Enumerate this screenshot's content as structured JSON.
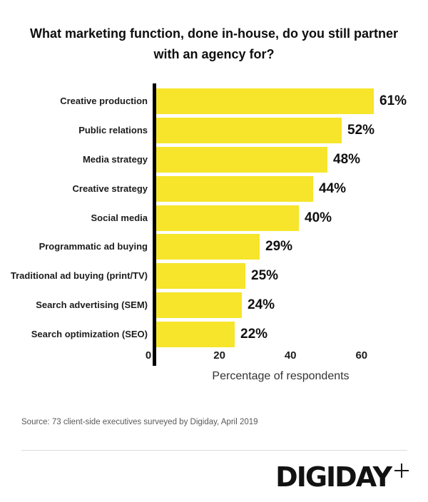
{
  "title": "What marketing function, done in-house, do you still partner with an agency for?",
  "chart_data": {
    "type": "bar",
    "orientation": "horizontal",
    "title": "What marketing function, done in-house, do you still partner with an agency for?",
    "categories": [
      "Creative production",
      "Public relations",
      "Media strategy",
      "Creative strategy",
      "Social media",
      "Programmatic ad buying",
      "Traditional ad buying (print/TV)",
      "Search advertising (SEM)",
      "Search optimization (SEO)"
    ],
    "values": [
      61,
      52,
      48,
      44,
      40,
      29,
      25,
      24,
      22
    ],
    "value_labels": [
      "61%",
      "52%",
      "48%",
      "44%",
      "40%",
      "29%",
      "25%",
      "24%",
      "22%"
    ],
    "xlabel": "Percentage of respondents",
    "xticks": [
      0,
      20,
      40,
      60
    ],
    "xlim": [
      0,
      70
    ],
    "grid": false,
    "legend": null,
    "bar_color": "#F6E52A",
    "axis_color": "#000000",
    "value_label_color": "#101010"
  },
  "source_note": "Source: 73 client-side executives surveyed by Digiday, April 2019",
  "footer": {
    "logo_text": "DIGIDAY",
    "logo_plus": "+"
  }
}
